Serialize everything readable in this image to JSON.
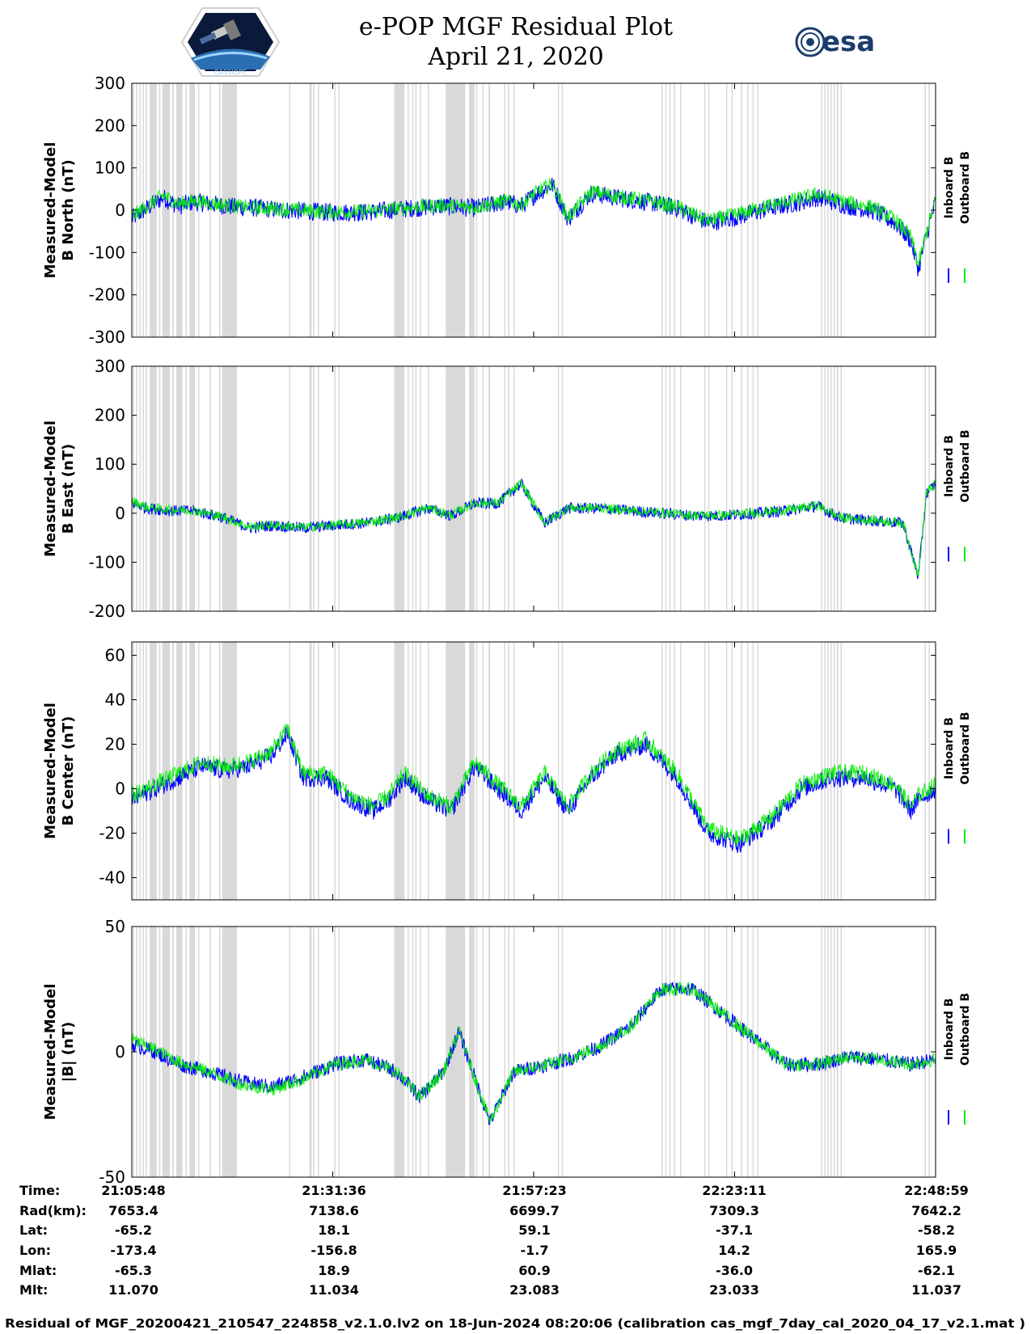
{
  "header": {
    "title_line1": "e-POP MGF Residual Plot",
    "title_line2": "April 21, 2020",
    "left_logo": "cassiope-mission-logo",
    "left_logo_text": "CASSIOPE",
    "right_logo_text": "esa"
  },
  "colors": {
    "inboard": "#0000ff",
    "outboard": "#00ee00",
    "gap": "#d9d9d9",
    "axis": "#000000"
  },
  "legend": {
    "inboard": "Inboard B",
    "outboard": "Outboard B"
  },
  "footer": "Residual of MGF_20200421_210547_224858_v2.1.0.lv2 on 18-Jun-2024 08:20:06 (calibration cas_mgf_7day_cal_2020_04_17_v2.1.mat )",
  "ephemeris": {
    "row_labels": [
      "Time:",
      "Rad(km):",
      "Lat:",
      "Lon:",
      "Mlat:",
      "Mlt:"
    ],
    "columns": [
      [
        "21:05:48",
        "7653.4",
        "-65.2",
        "-173.4",
        "-65.3",
        "11.070"
      ],
      [
        "21:31:36",
        "7138.6",
        "18.1",
        "-156.8",
        "18.9",
        "11.034"
      ],
      [
        "21:57:23",
        "6699.7",
        "59.1",
        "-1.7",
        "60.9",
        "23.083"
      ],
      [
        "22:23:11",
        "7309.3",
        "-37.1",
        "14.2",
        "-36.0",
        "23.033"
      ],
      [
        "22:48:59",
        "7642.2",
        "-58.2",
        "165.9",
        "-62.1",
        "11.037"
      ]
    ]
  },
  "chart_data": [
    {
      "type": "line",
      "title": "B North",
      "ylabel_line1": "Measured-Model",
      "ylabel_line2": "B North (nT)",
      "ylim": [
        -300,
        300
      ],
      "yticks": [
        300,
        200,
        100,
        0,
        -100,
        -200,
        -300
      ],
      "ytick_labels": [
        "300",
        "200",
        "100",
        "0",
        "-100",
        "-200",
        "-300"
      ],
      "xlim_min": [
        0,
        103.2
      ],
      "xticks_min": [
        0,
        25.8,
        51.6,
        77.4,
        103.2
      ],
      "series": [
        {
          "name": "Inboard B",
          "x": [
            0,
            2,
            4,
            6,
            8,
            10,
            13,
            16,
            20,
            25,
            30,
            36,
            40,
            44,
            48,
            50,
            52,
            54,
            56,
            59,
            62,
            66,
            70,
            74,
            78,
            82,
            86,
            88,
            90,
            92,
            95,
            98,
            100,
            101,
            102,
            103.2
          ],
          "y": [
            -20,
            5,
            30,
            10,
            20,
            15,
            8,
            5,
            0,
            -5,
            -5,
            5,
            10,
            5,
            20,
            10,
            40,
            60,
            -20,
            40,
            30,
            20,
            5,
            -30,
            -15,
            5,
            20,
            30,
            20,
            10,
            0,
            -30,
            -70,
            -140,
            -60,
            20
          ],
          "noise": 22
        },
        {
          "name": "Outboard B",
          "x": [
            0,
            2,
            4,
            6,
            8,
            10,
            13,
            16,
            20,
            25,
            30,
            36,
            40,
            44,
            48,
            50,
            52,
            54,
            56,
            59,
            62,
            66,
            70,
            74,
            78,
            82,
            86,
            88,
            90,
            92,
            95,
            98,
            100,
            101,
            102,
            103.2
          ],
          "y": [
            -15,
            10,
            35,
            15,
            22,
            17,
            10,
            6,
            2,
            -4,
            -3,
            7,
            12,
            7,
            22,
            13,
            43,
            63,
            -17,
            44,
            34,
            23,
            8,
            -25,
            -8,
            12,
            28,
            38,
            28,
            18,
            8,
            -22,
            -62,
            -130,
            -55,
            25
          ],
          "noise": 18
        }
      ]
    },
    {
      "type": "line",
      "title": "B East",
      "ylabel_line1": "Measured-Model",
      "ylabel_line2": "B East (nT)",
      "ylim": [
        -200,
        300
      ],
      "yticks": [
        300,
        200,
        100,
        0,
        -100,
        -200
      ],
      "ytick_labels": [
        "300",
        "200",
        "100",
        "0",
        "-100",
        "-200"
      ],
      "xlim_min": [
        0,
        103.2
      ],
      "xticks_min": [
        0,
        25.8,
        51.6,
        77.4,
        103.2
      ],
      "series": [
        {
          "name": "Inboard B",
          "x": [
            0,
            2,
            5,
            8,
            12,
            15,
            18,
            22,
            26,
            30,
            34,
            38,
            41,
            44,
            47,
            50,
            53,
            56,
            60,
            64,
            68,
            72,
            76,
            80,
            84,
            88,
            91,
            95,
            99,
            101,
            102,
            103.2
          ],
          "y": [
            20,
            10,
            5,
            5,
            -10,
            -30,
            -25,
            -30,
            -25,
            -20,
            -10,
            10,
            -5,
            20,
            20,
            60,
            -20,
            10,
            10,
            5,
            0,
            -5,
            -5,
            0,
            5,
            15,
            -10,
            -15,
            -20,
            -130,
            40,
            60
          ],
          "noise": 14
        },
        {
          "name": "Outboard B",
          "x": [
            0,
            2,
            5,
            8,
            12,
            15,
            18,
            22,
            26,
            30,
            34,
            38,
            41,
            44,
            47,
            50,
            53,
            56,
            60,
            64,
            68,
            72,
            76,
            80,
            84,
            88,
            91,
            95,
            99,
            101,
            102,
            103.2
          ],
          "y": [
            25,
            12,
            7,
            6,
            -9,
            -28,
            -24,
            -29,
            -24,
            -19,
            -9,
            11,
            -4,
            21,
            21,
            61,
            -19,
            11,
            11,
            6,
            1,
            -4,
            -4,
            1,
            6,
            16,
            -9,
            -14,
            -19,
            -128,
            41,
            61
          ],
          "noise": 12
        }
      ]
    },
    {
      "type": "line",
      "title": "B Center",
      "ylabel_line1": "Measured-Model",
      "ylabel_line2": "B Center (nT)",
      "ylim": [
        -50,
        66
      ],
      "yticks": [
        60,
        40,
        20,
        0,
        -20,
        -40
      ],
      "ytick_labels": [
        "60",
        "40",
        "20",
        "0",
        "-20",
        "-40"
      ],
      "xlim_min": [
        0,
        103.2
      ],
      "xticks_min": [
        0,
        25.8,
        51.6,
        77.4,
        103.2
      ],
      "series": [
        {
          "name": "Inboard B",
          "x": [
            0,
            3,
            6,
            9,
            12,
            15,
            18,
            20,
            22,
            25,
            28,
            31,
            33,
            35,
            38,
            41,
            44,
            47,
            50,
            53,
            56,
            59,
            62,
            66,
            70,
            74,
            78,
            82,
            86,
            90,
            94,
            98,
            100,
            101,
            103.2
          ],
          "y": [
            -5,
            0,
            5,
            10,
            8,
            10,
            15,
            25,
            5,
            5,
            -5,
            -10,
            -5,
            5,
            -5,
            -10,
            10,
            0,
            -10,
            5,
            -10,
            5,
            15,
            20,
            5,
            -20,
            -25,
            -15,
            0,
            5,
            5,
            0,
            -10,
            -5,
            0
          ],
          "noise": 22
        },
        {
          "name": "Outboard B",
          "x": [
            0,
            3,
            6,
            9,
            12,
            15,
            18,
            20,
            22,
            25,
            28,
            31,
            33,
            35,
            38,
            41,
            44,
            47,
            50,
            53,
            56,
            59,
            62,
            66,
            70,
            74,
            78,
            82,
            86,
            90,
            94,
            98,
            100,
            101,
            103.2
          ],
          "y": [
            -3,
            2,
            7,
            12,
            10,
            12,
            17,
            27,
            7,
            7,
            -3,
            -8,
            -3,
            7,
            -3,
            -8,
            12,
            2,
            -8,
            7,
            -8,
            7,
            17,
            22,
            7,
            -18,
            -23,
            -13,
            2,
            7,
            7,
            2,
            -8,
            -3,
            2
          ],
          "noise": 20
        }
      ]
    },
    {
      "type": "line",
      "title": "|B|",
      "ylabel_line1": "Measured-Model",
      "ylabel_line2": "|B| (nT)",
      "ylim": [
        -50,
        50
      ],
      "yticks": [
        50,
        0,
        -50
      ],
      "ytick_labels": [
        "50",
        "0",
        "-50"
      ],
      "xlim_min": [
        0,
        103.2
      ],
      "xticks_min": [
        0,
        25.8,
        51.6,
        77.4,
        103.2
      ],
      "series": [
        {
          "name": "Inboard B",
          "x": [
            0,
            3,
            6,
            10,
            14,
            18,
            22,
            26,
            30,
            34,
            37,
            40,
            42,
            44,
            46,
            49,
            52,
            56,
            60,
            64,
            68,
            72,
            76,
            80,
            84,
            88,
            92,
            96,
            100,
            103.2
          ],
          "y": [
            3,
            0,
            -5,
            -8,
            -12,
            -14,
            -10,
            -5,
            -3,
            -8,
            -18,
            -8,
            8,
            -10,
            -28,
            -8,
            -6,
            -3,
            2,
            10,
            25,
            25,
            15,
            5,
            -5,
            -5,
            -2,
            -3,
            -5,
            -3
          ],
          "noise": 18
        },
        {
          "name": "Outboard B",
          "x": [
            0,
            3,
            6,
            10,
            14,
            18,
            22,
            26,
            30,
            34,
            37,
            40,
            42,
            44,
            46,
            49,
            52,
            56,
            60,
            64,
            68,
            72,
            76,
            80,
            84,
            88,
            92,
            96,
            100,
            103.2
          ],
          "y": [
            5,
            1,
            -4,
            -8,
            -13,
            -15,
            -11,
            -5,
            -3,
            -8,
            -18,
            -8,
            8,
            -10,
            -28,
            -8,
            -6,
            -3,
            2,
            10,
            25,
            25,
            15,
            5,
            -5,
            -5,
            -2,
            -3,
            -5,
            -3
          ],
          "noise": 16
        }
      ]
    }
  ],
  "gaps_min": [
    [
      0.15,
      0.3
    ],
    [
      0.55,
      0.7
    ],
    [
      1.0,
      1.15
    ],
    [
      1.4,
      1.55
    ],
    [
      1.8,
      1.95
    ],
    [
      2.3,
      3.2
    ],
    [
      3.5,
      3.65
    ],
    [
      3.9,
      4.9
    ],
    [
      5.2,
      5.4
    ],
    [
      5.7,
      6.5
    ],
    [
      6.9,
      7.05
    ],
    [
      7.4,
      8.1
    ],
    [
      8.5,
      8.65
    ],
    [
      10.0,
      10.15
    ],
    [
      11.2,
      11.35
    ],
    [
      11.6,
      13.5
    ],
    [
      20.2,
      20.35
    ],
    [
      22.8,
      23.1
    ],
    [
      23.3,
      23.45
    ],
    [
      23.9,
      24.05
    ],
    [
      26.0,
      26.1
    ],
    [
      26.5,
      26.6
    ],
    [
      33.7,
      35.0
    ],
    [
      35.4,
      35.55
    ],
    [
      36.0,
      36.1
    ],
    [
      36.4,
      36.5
    ],
    [
      37.0,
      37.1
    ],
    [
      38.0,
      38.1
    ],
    [
      40.3,
      42.8
    ],
    [
      43.3,
      44.0
    ],
    [
      44.2,
      44.3
    ],
    [
      45.0,
      45.1
    ],
    [
      45.8,
      46.0
    ],
    [
      47.8,
      47.9
    ],
    [
      48.3,
      48.4
    ],
    [
      49.0,
      49.1
    ],
    [
      54.7,
      54.8
    ],
    [
      55.2,
      55.35
    ],
    [
      68.0,
      68.1
    ],
    [
      68.5,
      68.6
    ],
    [
      69.0,
      69.1
    ],
    [
      69.6,
      69.7
    ],
    [
      70.4,
      70.5
    ],
    [
      73.5,
      73.6
    ],
    [
      74.0,
      74.1
    ],
    [
      76.3,
      76.4
    ],
    [
      77.0,
      77.1
    ],
    [
      78.2,
      78.3
    ],
    [
      79.0,
      79.1
    ],
    [
      79.7,
      79.8
    ],
    [
      80.3,
      80.4
    ],
    [
      88.5,
      88.6
    ],
    [
      88.9,
      89.0
    ],
    [
      89.3,
      89.4
    ],
    [
      89.7,
      89.8
    ],
    [
      90.1,
      90.2
    ],
    [
      90.5,
      90.7
    ],
    [
      91.0,
      91.1
    ],
    [
      101.8,
      101.9
    ],
    [
      102.3,
      102.4
    ]
  ]
}
